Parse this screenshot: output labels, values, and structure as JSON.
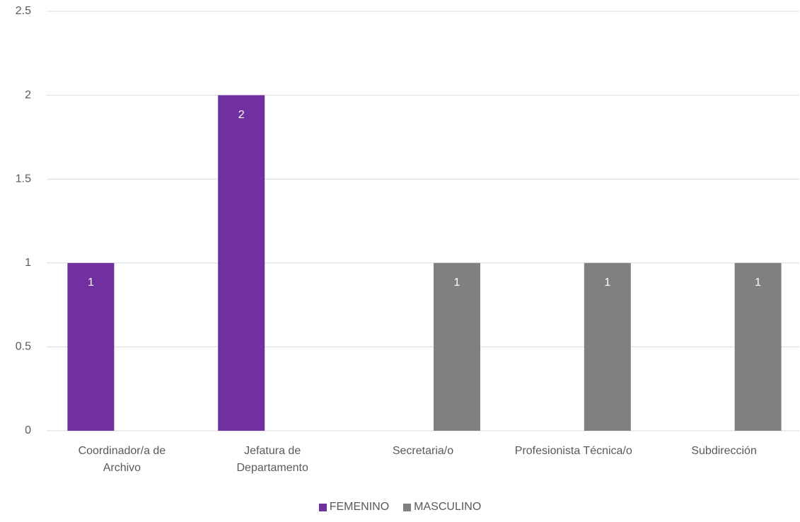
{
  "chart_data": {
    "type": "bar",
    "categories": [
      "Coordinador/a de Archivo",
      "Jefatura de Departamento",
      "Secretaria/o",
      "Profesionista Técnica/o",
      "Subdirección"
    ],
    "series": [
      {
        "name": "FEMENINO",
        "color": "#7030a0",
        "values": [
          1,
          2,
          null,
          null,
          null
        ]
      },
      {
        "name": "MASCULINO",
        "color": "#808080",
        "values": [
          null,
          null,
          1,
          1,
          1
        ]
      }
    ],
    "ylim": [
      0,
      2.5
    ],
    "yticks": [
      0,
      0.5,
      1,
      1.5,
      2,
      2.5
    ],
    "grid": true,
    "legend": "bottom",
    "data_labels": true
  }
}
